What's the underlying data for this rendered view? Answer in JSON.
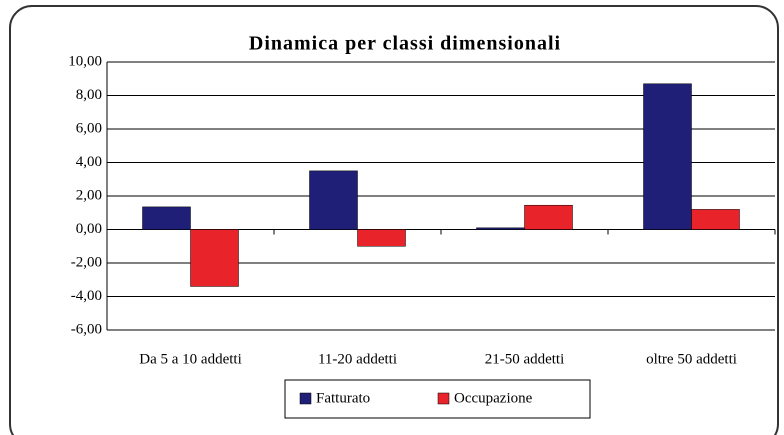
{
  "chart_data": {
    "type": "bar",
    "title": "Dinamica per classi dimensionali",
    "categories": [
      "Da 5 a 10 addetti",
      "11-20 addetti",
      "21-50 addetti",
      "oltre 50 addetti"
    ],
    "series": [
      {
        "name": "Fatturato",
        "color": "#1f1f78",
        "values": [
          1.35,
          3.5,
          0.1,
          8.7
        ]
      },
      {
        "name": "Occupazione",
        "color": "#e8232a",
        "values": [
          -3.4,
          -1.0,
          1.45,
          1.2
        ]
      }
    ],
    "ylim": [
      -6,
      10
    ],
    "yticks": [
      {
        "value": -6,
        "label": "-6,00"
      },
      {
        "value": -4,
        "label": "-4,00"
      },
      {
        "value": -2,
        "label": "-2,00"
      },
      {
        "value": 0,
        "label": "0,00"
      },
      {
        "value": 2,
        "label": "2,00"
      },
      {
        "value": 4,
        "label": "4,00"
      },
      {
        "value": 6,
        "label": "6,00"
      },
      {
        "value": 8,
        "label": "8,00"
      },
      {
        "value": 10,
        "label": "10,00"
      }
    ],
    "grid": true
  }
}
